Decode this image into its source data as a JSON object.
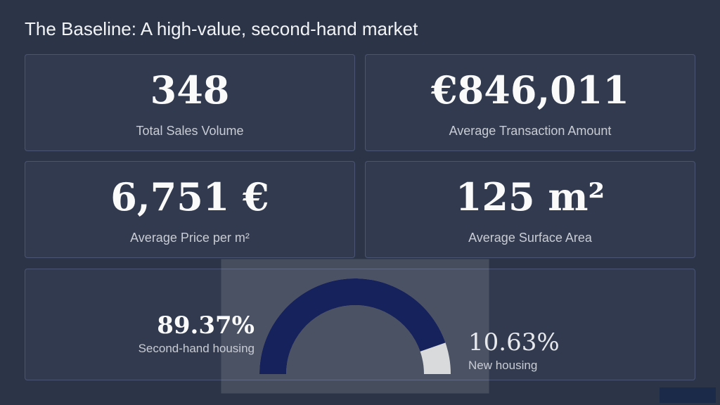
{
  "title": "The Baseline: A high-value, second-hand market",
  "kpis": [
    {
      "value": "348",
      "label": "Total Sales Volume"
    },
    {
      "value": "€846,011",
      "label": "Average Transaction Amount"
    },
    {
      "value": "6,751 €",
      "label": "Average Price per m²"
    },
    {
      "value": "125 m²",
      "label": "Average Surface Area"
    }
  ],
  "chart_data": {
    "type": "donut",
    "categories": [
      "Second-hand housing",
      "New housing"
    ],
    "values": [
      89.37,
      10.63
    ],
    "value_labels": [
      "89.37%",
      "10.63%"
    ],
    "colors": [
      "#16205c",
      "#d9dadc"
    ]
  }
}
